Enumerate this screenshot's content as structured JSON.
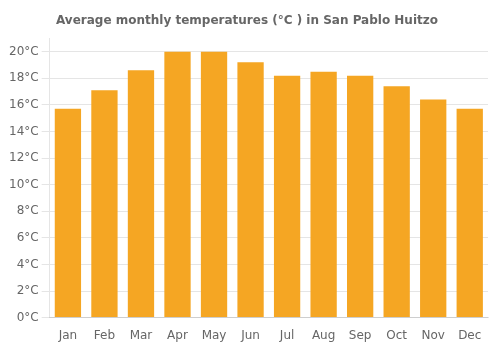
{
  "chart_data": {
    "type": "bar",
    "title": "Average monthly temperatures (°C ) in San Pablo Huitzo",
    "categories": [
      "Jan",
      "Feb",
      "Mar",
      "Apr",
      "May",
      "Jun",
      "Jul",
      "Aug",
      "Sep",
      "Oct",
      "Nov",
      "Dec"
    ],
    "values": [
      15.7,
      17.1,
      18.6,
      20.0,
      20.0,
      19.2,
      18.2,
      18.5,
      18.2,
      17.4,
      16.4,
      15.7
    ],
    "color": "#F5A623",
    "ylim": [
      0,
      21
    ],
    "yticks": [
      {
        "value": 0,
        "label": "0°C"
      },
      {
        "value": 2,
        "label": "2°C"
      },
      {
        "value": 4,
        "label": "4°C"
      },
      {
        "value": 6,
        "label": "6°C"
      },
      {
        "value": 8,
        "label": "8°C"
      },
      {
        "value": 10,
        "label": "10°C"
      },
      {
        "value": 12,
        "label": "12°C"
      },
      {
        "value": 14,
        "label": "14°C"
      },
      {
        "value": 16,
        "label": "16°C"
      },
      {
        "value": 18,
        "label": "18°C"
      },
      {
        "value": 20,
        "label": "20°C"
      }
    ],
    "grid": true
  }
}
